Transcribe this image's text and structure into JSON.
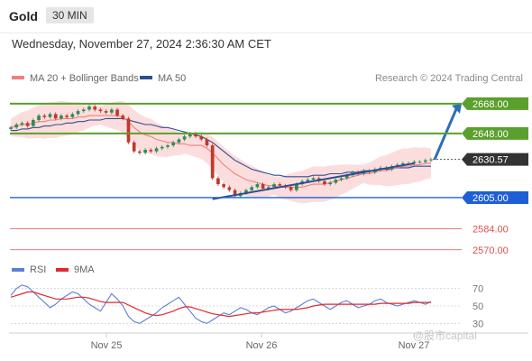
{
  "header": {
    "asset": "Gold",
    "timeframe": "30 MIN"
  },
  "datetime": "Wednesday, November 27, 2024 2:36:30 AM CET",
  "legend": {
    "ma20_label": "MA 20 + Bollinger Bands",
    "ma50_label": "MA 50",
    "credit": "Research © 2024 Trading Central",
    "rsi_label": "RSI",
    "ma9_label": "9MA"
  },
  "colors": {
    "ma20": "#f08080",
    "ma50": "#2c4f91",
    "band": "#fbd5d5",
    "green": "#5aa02c",
    "blue": "#1f5fd6",
    "red": "#e05050",
    "dark": "#333333",
    "rsi": "#5b7fd6",
    "rsi_ma": "#e0292d",
    "arrow": "#2f6db5"
  },
  "watermark": "@股市capital",
  "chart_data": [
    {
      "type": "candlestick",
      "title": "Gold",
      "timeframe": "30 MIN",
      "x_labels": [
        "Nov 25",
        "Nov 26",
        "Nov 27"
      ],
      "ylim": [
        2562,
        2680
      ],
      "levels": [
        {
          "value": 2668.0,
          "label": "2668.00",
          "kind": "resistance"
        },
        {
          "value": 2648.0,
          "label": "2648.00",
          "kind": "resistance"
        },
        {
          "value": 2630.57,
          "label": "2630.57",
          "kind": "current"
        },
        {
          "value": 2605.0,
          "label": "2605.00",
          "kind": "support"
        },
        {
          "value": 2584.0,
          "label": "2584.00",
          "kind": "minor"
        },
        {
          "value": 2570.0,
          "label": "2570.00",
          "kind": "minor"
        }
      ],
      "close_series": [
        2652,
        2654,
        2655,
        2653,
        2657,
        2660,
        2659,
        2661,
        2658,
        2660,
        2659,
        2661,
        2663,
        2664,
        2666,
        2664,
        2663,
        2662,
        2664,
        2660,
        2658,
        2642,
        2636,
        2635,
        2637,
        2636,
        2638,
        2639,
        2640,
        2642,
        2644,
        2646,
        2648,
        2646,
        2644,
        2640,
        2618,
        2614,
        2612,
        2610,
        2606,
        2608,
        2610,
        2612,
        2614,
        2611,
        2612,
        2614,
        2613,
        2612,
        2610,
        2614,
        2616,
        2617,
        2618,
        2616,
        2614,
        2615,
        2617,
        2618,
        2620,
        2622,
        2621,
        2623,
        2622,
        2624,
        2625,
        2624,
        2626,
        2627,
        2628,
        2628,
        2629,
        2629,
        2630,
        2630.57
      ],
      "ma20": [
        2652,
        2653,
        2654,
        2654,
        2655,
        2656,
        2656,
        2657,
        2657,
        2658,
        2658,
        2658,
        2659,
        2659,
        2660,
        2660,
        2660,
        2660,
        2660,
        2660,
        2659,
        2656,
        2652,
        2649,
        2647,
        2646,
        2644,
        2643,
        2642,
        2642,
        2641,
        2641,
        2640,
        2640,
        2640,
        2638,
        2635,
        2631,
        2627,
        2624,
        2621,
        2619,
        2617,
        2616,
        2615,
        2614,
        2613,
        2613,
        2612,
        2612,
        2612,
        2612,
        2612,
        2613,
        2614,
        2614,
        2614,
        2615,
        2616,
        2617,
        2618,
        2619,
        2620,
        2621,
        2621,
        2622,
        2623,
        2623,
        2624,
        2625,
        2626,
        2626,
        2627,
        2627,
        2628,
        2628
      ],
      "ma50": [
        2650,
        2650,
        2651,
        2651,
        2652,
        2652,
        2653,
        2653,
        2654,
        2654,
        2655,
        2655,
        2656,
        2656,
        2657,
        2657,
        2657,
        2658,
        2658,
        2658,
        2658,
        2657,
        2656,
        2655,
        2654,
        2654,
        2653,
        2652,
        2652,
        2651,
        2650,
        2649,
        2648,
        2647,
        2646,
        2644,
        2642,
        2639,
        2636,
        2633,
        2630,
        2628,
        2626,
        2624,
        2623,
        2622,
        2621,
        2620,
        2620,
        2619,
        2619,
        2619,
        2619,
        2619,
        2620,
        2620,
        2620,
        2621,
        2621,
        2621,
        2622,
        2622,
        2622,
        2623,
        2623,
        2623,
        2624,
        2624,
        2624,
        2625,
        2625,
        2625,
        2626,
        2626,
        2626,
        2626
      ]
    },
    {
      "type": "line",
      "title": "RSI",
      "x_labels": [
        "Nov 25",
        "Nov 26",
        "Nov 27"
      ],
      "y_ticks": [
        70,
        50,
        30
      ],
      "ylim": [
        20,
        80
      ],
      "series": [
        {
          "name": "RSI",
          "values": [
            62,
            70,
            74,
            72,
            66,
            60,
            54,
            48,
            52,
            58,
            62,
            66,
            64,
            58,
            52,
            48,
            44,
            54,
            64,
            58,
            50,
            38,
            32,
            30,
            34,
            38,
            42,
            48,
            52,
            56,
            60,
            52,
            44,
            36,
            32,
            30,
            34,
            38,
            42,
            40,
            44,
            48,
            46,
            42,
            40,
            44,
            48,
            50,
            46,
            42,
            44,
            48,
            52,
            56,
            58,
            54,
            50,
            46,
            50,
            54,
            56,
            52,
            48,
            50,
            52,
            56,
            58,
            54,
            52,
            50,
            52,
            54,
            56,
            54,
            52,
            55
          ]
        },
        {
          "name": "9MA",
          "values": [
            60,
            62,
            64,
            66,
            66,
            64,
            62,
            60,
            58,
            58,
            58,
            59,
            60,
            60,
            59,
            57,
            55,
            54,
            54,
            54,
            54,
            51,
            48,
            45,
            42,
            40,
            39,
            40,
            42,
            44,
            47,
            49,
            49,
            47,
            45,
            43,
            41,
            40,
            39,
            38,
            39,
            40,
            41,
            42,
            42,
            43,
            44,
            45,
            46,
            46,
            46,
            46,
            47,
            48,
            50,
            51,
            52,
            52,
            52,
            52,
            52,
            52,
            52,
            52,
            52,
            52,
            53,
            53,
            53,
            53,
            53,
            53,
            54,
            54,
            54,
            54
          ]
        }
      ]
    }
  ]
}
